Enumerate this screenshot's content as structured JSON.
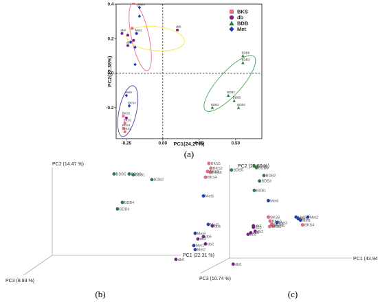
{
  "figure_labels": {
    "a": "(a)",
    "b": "(b)",
    "c": "(c)"
  },
  "colors": {
    "BKS": "#ef6b80",
    "db": "#7a1c8c",
    "BDB": "#2d7d46",
    "Met": "#1d3cb8"
  },
  "chart_data": [
    {
      "type": "scatter",
      "panel": "a",
      "xlabel": "PC1(24.27%)",
      "ylabel": "PC2(12.38%)",
      "xlim": [
        -0.32,
        0.68
      ],
      "ylim": [
        -0.38,
        0.4
      ],
      "xticks": [
        -0.25,
        0.0,
        0.25,
        0.5
      ],
      "xtick_labels": [
        "-0.25",
        "0.00",
        "0.25",
        "0.50"
      ],
      "yticks": [
        -0.2,
        0.0,
        0.2,
        0.4
      ],
      "ytick_labels": [
        "-0.2",
        "0.0",
        "0.2",
        "0.4"
      ],
      "grid": false,
      "legend": "top-right",
      "series": [
        {
          "name": "BKS",
          "marker": "square",
          "color": "#ef6b80",
          "points": [
            {
              "x": -0.27,
              "y": -0.25,
              "label": "BKS5"
            },
            {
              "x": -0.26,
              "y": -0.29,
              "label": "BKS2"
            },
            {
              "x": -0.27,
              "y": -0.32,
              "label": "BKS3"
            },
            {
              "x": -0.26,
              "y": -0.34,
              "label": "BKS1"
            },
            {
              "x": -0.21,
              "y": 0.26,
              "label": ""
            }
          ]
        },
        {
          "name": "db",
          "marker": "circle",
          "color": "#7a1c8c",
          "points": [
            {
              "x": -0.28,
              "y": 0.23,
              "label": "db4"
            },
            {
              "x": -0.24,
              "y": 0.22,
              "label": ""
            },
            {
              "x": -0.25,
              "y": -0.26,
              "label": ""
            },
            {
              "x": -0.24,
              "y": 0.16,
              "label": "db1"
            },
            {
              "x": -0.2,
              "y": 0.19,
              "label": ""
            },
            {
              "x": -0.18,
              "y": 0.23,
              "label": ""
            },
            {
              "x": 0.1,
              "y": 0.25,
              "label": "db5"
            }
          ]
        },
        {
          "name": "BDB",
          "marker": "triangle",
          "color": "#2d7d46",
          "points": [
            {
              "x": 0.55,
              "y": 0.1,
              "label": "BDB6"
            },
            {
              "x": 0.55,
              "y": 0.06,
              "label": "BDB3"
            },
            {
              "x": 0.45,
              "y": -0.13,
              "label": "BDB1"
            },
            {
              "x": 0.49,
              "y": -0.16,
              "label": "BDB5"
            },
            {
              "x": 0.52,
              "y": -0.2,
              "label": "BDB4"
            },
            {
              "x": 0.34,
              "y": -0.2,
              "label": "BDB2"
            }
          ]
        },
        {
          "name": "Met",
          "marker": "diamond",
          "color": "#1d3cb8",
          "points": [
            {
              "x": -0.16,
              "y": 0.38,
              "label": "Met4"
            },
            {
              "x": -0.16,
              "y": 0.33,
              "label": ""
            },
            {
              "x": -0.18,
              "y": 0.23,
              "label": "Met2"
            },
            {
              "x": -0.22,
              "y": 0.18,
              "label": ""
            },
            {
              "x": -0.19,
              "y": 0.15,
              "label": ""
            },
            {
              "x": -0.19,
              "y": 0.05,
              "label": ""
            },
            {
              "x": -0.25,
              "y": -0.13,
              "label": "Met6"
            },
            {
              "x": -0.23,
              "y": -0.19,
              "label": "BKS4"
            }
          ]
        }
      ],
      "ellipses": [
        {
          "group": "BKS",
          "color": "#ef6b80",
          "cx": -0.155,
          "cy": 0.21,
          "rx": 0.06,
          "ry": 0.2,
          "angle": -12
        },
        {
          "group": "db",
          "color": "#f5e642",
          "cx": -0.05,
          "cy": 0.2,
          "rx": 0.2,
          "ry": 0.07,
          "angle": 6
        },
        {
          "group": "Met",
          "color": "#4a3a9e",
          "cx": -0.24,
          "cy": -0.22,
          "rx": 0.06,
          "ry": 0.15,
          "angle": 12
        },
        {
          "group": "BDB",
          "color": "#4caa55",
          "cx": 0.46,
          "cy": -0.06,
          "rx": 0.08,
          "ry": 0.21,
          "angle": 42
        }
      ]
    },
    {
      "type": "scatter",
      "panel": "b",
      "xlabel": "PC1 (22.31 %)",
      "ylabel": "PC2 (14.47 %)",
      "zlabel": "PC3 (8.83 %)",
      "points": [
        {
          "label": "BDB6",
          "group": "BDB",
          "x": -1.0,
          "y": 0.95
        },
        {
          "label": "BDB5",
          "group": "BDB",
          "x": -0.78,
          "y": 0.95
        },
        {
          "label": "BDB1",
          "group": "BDB",
          "x": -0.72,
          "y": 0.94
        },
        {
          "label": "BDB2",
          "group": "BDB",
          "x": -0.45,
          "y": 0.88
        },
        {
          "label": "BDB4",
          "group": "BDB",
          "x": -0.88,
          "y": 0.6
        },
        {
          "label": "BDB3",
          "group": "BDB",
          "x": -0.95,
          "y": 0.52
        },
        {
          "label": "BKS5",
          "group": "BKS",
          "x": 0.38,
          "y": 1.08
        },
        {
          "label": "BKS2",
          "group": "BKS",
          "x": 0.41,
          "y": 1.02
        },
        {
          "label": "BKS6",
          "group": "BKS",
          "x": 0.4,
          "y": 0.97
        },
        {
          "label": "BKS3",
          "group": "BKS",
          "x": 0.36,
          "y": 0.98
        },
        {
          "label": "BKS4",
          "group": "BKS",
          "x": 0.33,
          "y": 0.91
        },
        {
          "label": "Met5",
          "group": "Met",
          "x": 0.3,
          "y": 0.68
        },
        {
          "label": "Met3",
          "group": "Met",
          "x": 0.37,
          "y": 0.33
        },
        {
          "label": "db4",
          "group": "db",
          "x": 0.43,
          "y": 0.31
        },
        {
          "label": "Met4",
          "group": "Met",
          "x": 0.18,
          "y": 0.22
        },
        {
          "label": "db5",
          "group": "db",
          "x": 0.3,
          "y": 0.18
        },
        {
          "label": "db3",
          "group": "db",
          "x": 0.22,
          "y": 0.15
        },
        {
          "label": "db2",
          "group": "db",
          "x": 0.33,
          "y": 0.09
        },
        {
          "label": "Met1",
          "group": "Met",
          "x": 0.16,
          "y": 0.07
        },
        {
          "label": "Met2",
          "group": "Met",
          "x": 0.18,
          "y": 0.02
        },
        {
          "label": "db6",
          "group": "db",
          "x": -0.1,
          "y": -0.1
        }
      ]
    },
    {
      "type": "scatter",
      "panel": "c",
      "xlabel": "PC1 (43.94 %)",
      "ylabel": "PC2 (25.67 %)",
      "zlabel": "PC3 (10.74 %)",
      "points": [
        {
          "label": "BDB4",
          "group": "BDB",
          "x": 0.5,
          "y": 1.05
        },
        {
          "label": "BDB6",
          "group": "BDB",
          "x": 0.55,
          "y": 1.03
        },
        {
          "label": "BDB5",
          "group": "BDB",
          "x": -0.02,
          "y": 1.0
        },
        {
          "label": "BDB2",
          "group": "BDB",
          "x": 0.72,
          "y": 0.93
        },
        {
          "label": "BDB3",
          "group": "BDB",
          "x": 0.62,
          "y": 0.86
        },
        {
          "label": "BDB1",
          "group": "BDB",
          "x": 0.5,
          "y": 0.74
        },
        {
          "label": "Met6",
          "group": "Met",
          "x": 0.82,
          "y": 0.61
        },
        {
          "label": "BKS5",
          "group": "BKS",
          "x": 0.82,
          "y": 0.4
        },
        {
          "label": "BKS2",
          "group": "BKS",
          "x": 0.86,
          "y": 0.35
        },
        {
          "label": "BKS3",
          "group": "BKS",
          "x": 0.9,
          "y": 0.31
        },
        {
          "label": "BKS6",
          "group": "BKS",
          "x": 0.93,
          "y": 0.29
        },
        {
          "label": "BKS1",
          "group": "BKS",
          "x": 0.85,
          "y": 0.28
        },
        {
          "label": "Met3",
          "group": "Met",
          "x": 1.02,
          "y": 0.33
        },
        {
          "label": "db1",
          "group": "db",
          "x": 0.48,
          "y": 0.29
        },
        {
          "label": "db3",
          "group": "db",
          "x": 0.48,
          "y": 0.27
        },
        {
          "label": "db2",
          "group": "db",
          "x": 0.52,
          "y": 0.22
        },
        {
          "label": "db5",
          "group": "db",
          "x": 0.42,
          "y": 0.2
        },
        {
          "label": "db4",
          "group": "db",
          "x": 0.36,
          "y": 0.18
        },
        {
          "label": "Met5",
          "group": "Met",
          "x": 1.45,
          "y": 0.4
        },
        {
          "label": "Met4",
          "group": "Met",
          "x": 1.5,
          "y": 0.38
        },
        {
          "label": "Met1",
          "group": "Met",
          "x": 1.55,
          "y": 0.36
        },
        {
          "label": "BKS4",
          "group": "BKS",
          "x": 1.6,
          "y": 0.3
        },
        {
          "label": "Met2",
          "group": "Met",
          "x": 1.72,
          "y": 0.4
        },
        {
          "label": "db6",
          "group": "db",
          "x": 0.02,
          "y": -0.2
        }
      ]
    }
  ]
}
